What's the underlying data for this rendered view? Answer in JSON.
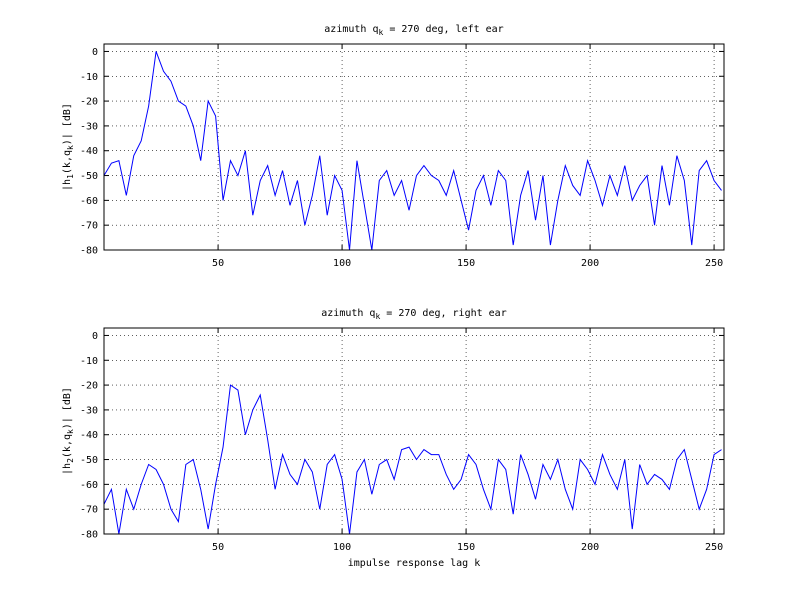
{
  "chart_data": [
    {
      "type": "line",
      "title": [
        "azimuth q",
        "k",
        " = 270 deg, left ear"
      ],
      "ylabel": [
        "|h",
        "1",
        "(k,q",
        "k",
        ")| [dB]"
      ],
      "xlim": [
        4,
        254
      ],
      "ylim": [
        -80,
        3
      ],
      "xticks": [
        50,
        100,
        150,
        200,
        250
      ],
      "yticks": [
        0,
        -10,
        -20,
        -30,
        -40,
        -50,
        -60,
        -70,
        -80
      ],
      "grid": true,
      "x": [
        4,
        7,
        10,
        13,
        16,
        19,
        22,
        25,
        28,
        31,
        34,
        37,
        40,
        43,
        46,
        49,
        52,
        55,
        58,
        61,
        64,
        67,
        70,
        73,
        76,
        79,
        82,
        85,
        88,
        91,
        94,
        97,
        100,
        103,
        106,
        109,
        112,
        115,
        118,
        121,
        124,
        127,
        130,
        133,
        136,
        139,
        142,
        145,
        148,
        151,
        154,
        157,
        160,
        163,
        166,
        169,
        172,
        175,
        178,
        181,
        184,
        187,
        190,
        193,
        196,
        199,
        202,
        205,
        208,
        211,
        214,
        217,
        220,
        223,
        226,
        229,
        232,
        235,
        238,
        241,
        244,
        247,
        250,
        253
      ],
      "series": [
        {
          "color": "#0000ff",
          "values": [
            -50,
            -45,
            -44,
            -58,
            -42,
            -36,
            -22,
            0,
            -8,
            -12,
            -20,
            -22,
            -30,
            -44,
            -20,
            -26,
            -60,
            -44,
            -50,
            -40,
            -66,
            -52,
            -46,
            -58,
            -48,
            -62,
            -52,
            -70,
            -58,
            -42,
            -66,
            -50,
            -56,
            -80,
            -44,
            -62,
            -80,
            -52,
            -48,
            -58,
            -52,
            -64,
            -50,
            -46,
            -50,
            -52,
            -58,
            -48,
            -60,
            -72,
            -56,
            -50,
            -62,
            -48,
            -52,
            -78,
            -58,
            -48,
            -68,
            -50,
            -78,
            -60,
            -46,
            -54,
            -58,
            -44,
            -52,
            -62,
            -50,
            -58,
            -46,
            -60,
            -54,
            -50,
            -70,
            -46,
            -62,
            -42,
            -52,
            -78,
            -48,
            -44,
            -52,
            -56
          ]
        }
      ]
    },
    {
      "type": "line",
      "title": [
        "azimuth q",
        "k",
        " = 270 deg, right ear"
      ],
      "ylabel": [
        "|h",
        "2",
        "(k,q",
        "k",
        ")| [dB]"
      ],
      "xlabel": "impulse response lag k",
      "xlim": [
        4,
        254
      ],
      "ylim": [
        -80,
        3
      ],
      "xticks": [
        50,
        100,
        150,
        200,
        250
      ],
      "yticks": [
        0,
        -10,
        -20,
        -30,
        -40,
        -50,
        -60,
        -70,
        -80
      ],
      "grid": true,
      "x": [
        4,
        7,
        10,
        13,
        16,
        19,
        22,
        25,
        28,
        31,
        34,
        37,
        40,
        43,
        46,
        49,
        52,
        55,
        58,
        61,
        64,
        67,
        70,
        73,
        76,
        79,
        82,
        85,
        88,
        91,
        94,
        97,
        100,
        103,
        106,
        109,
        112,
        115,
        118,
        121,
        124,
        127,
        130,
        133,
        136,
        139,
        142,
        145,
        148,
        151,
        154,
        157,
        160,
        163,
        166,
        169,
        172,
        175,
        178,
        181,
        184,
        187,
        190,
        193,
        196,
        199,
        202,
        205,
        208,
        211,
        214,
        217,
        220,
        223,
        226,
        229,
        232,
        235,
        238,
        241,
        244,
        247,
        250,
        253
      ],
      "series": [
        {
          "color": "#0000ff",
          "values": [
            -68,
            -62,
            -80,
            -62,
            -70,
            -60,
            -52,
            -54,
            -60,
            -70,
            -75,
            -52,
            -50,
            -62,
            -78,
            -60,
            -45,
            -20,
            -22,
            -40,
            -30,
            -24,
            -42,
            -62,
            -48,
            -56,
            -60,
            -50,
            -55,
            -70,
            -52,
            -48,
            -58,
            -80,
            -55,
            -50,
            -64,
            -52,
            -50,
            -58,
            -46,
            -45,
            -50,
            -46,
            -48,
            -48,
            -56,
            -62,
            -58,
            -48,
            -52,
            -62,
            -70,
            -50,
            -54,
            -72,
            -48,
            -56,
            -66,
            -52,
            -58,
            -50,
            -62,
            -70,
            -50,
            -54,
            -60,
            -48,
            -56,
            -62,
            -50,
            -78,
            -52,
            -60,
            -56,
            -58,
            -62,
            -50,
            -46,
            -58,
            -70,
            -62,
            -48,
            -46
          ]
        }
      ]
    }
  ]
}
